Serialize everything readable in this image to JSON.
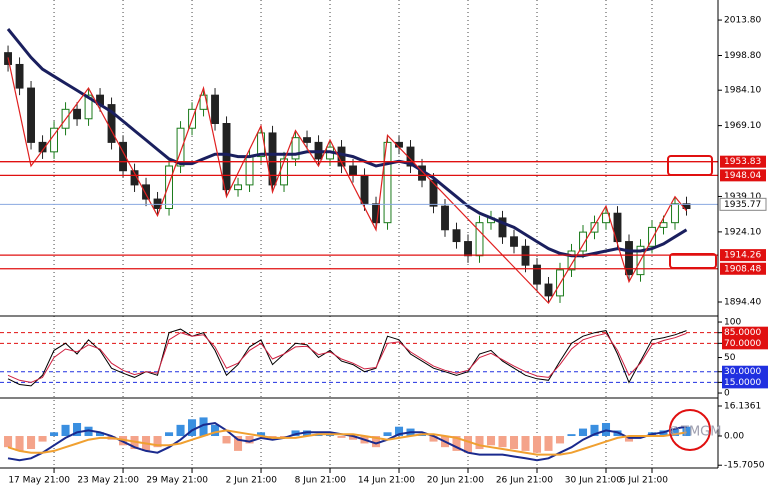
{
  "chart_data": [
    {
      "type": "candlestick",
      "up_color": "#1a7a1a",
      "down_color": "#222222",
      "xlim": [
        -0.7,
        61.74
      ],
      "ylim": [
        1888.9,
        2022.3
      ],
      "yticks": [
        {
          "value": 2013.8,
          "label": "2013.80"
        },
        {
          "value": 1998.8,
          "label": "1998.80"
        },
        {
          "value": 1984.1,
          "label": "1984.10"
        },
        {
          "value": 1969.1,
          "label": "1969.10"
        },
        {
          "value": 1939.1,
          "label": "1939.10"
        },
        {
          "value": 1924.1,
          "label": "1924.10"
        },
        {
          "value": 1894.4,
          "label": "1894.40"
        }
      ],
      "xticks": [
        {
          "value": 4,
          "label": "17 May 21:00"
        },
        {
          "value": 10,
          "label": "23 May 21:00"
        },
        {
          "value": 16,
          "label": "29 May 21:00"
        },
        {
          "value": 22,
          "label": "2 Jun 21:00"
        },
        {
          "value": 28,
          "label": "8 Jun 21:00"
        },
        {
          "value": 34,
          "label": "14 Jun 21:00"
        },
        {
          "value": 40,
          "label": "20 Jun 21:00"
        },
        {
          "value": 46,
          "label": "26 Jun 21:00"
        },
        {
          "value": 52,
          "label": "30 Jun 21:00"
        },
        {
          "value": 56,
          "label": "6 Jul 21:00"
        }
      ],
      "ohlc": [
        [
          2000,
          2003,
          1992,
          1995
        ],
        [
          1995,
          1998,
          1982,
          1985
        ],
        [
          1985,
          1988,
          1959,
          1962
        ],
        [
          1962,
          1965,
          1955,
          1958
        ],
        [
          1958,
          1971,
          1955,
          1968
        ],
        [
          1968,
          1979,
          1965,
          1976
        ],
        [
          1976,
          1979,
          1969,
          1972
        ],
        [
          1972,
          1985,
          1969,
          1982
        ],
        [
          1982,
          1985,
          1975,
          1978
        ],
        [
          1978,
          1981,
          1959,
          1962
        ],
        [
          1962,
          1965,
          1947,
          1950
        ],
        [
          1950,
          1953,
          1941,
          1944
        ],
        [
          1944,
          1947,
          1935,
          1938
        ],
        [
          1938,
          1941,
          1931,
          1934
        ],
        [
          1934,
          1955,
          1931,
          1952
        ],
        [
          1952,
          1971,
          1949,
          1968
        ],
        [
          1968,
          1979,
          1965,
          1976
        ],
        [
          1976,
          1985,
          1973,
          1982
        ],
        [
          1982,
          1985,
          1967,
          1970
        ],
        [
          1970,
          1973,
          1939,
          1942
        ],
        [
          1942,
          1947,
          1939,
          1944
        ],
        [
          1944,
          1959,
          1941,
          1956
        ],
        [
          1956,
          1969,
          1953,
          1966
        ],
        [
          1966,
          1969,
          1941,
          1944
        ],
        [
          1944,
          1958,
          1941,
          1955
        ],
        [
          1955,
          1967,
          1952,
          1964
        ],
        [
          1964,
          1967,
          1959,
          1962
        ],
        [
          1962,
          1965,
          1952,
          1955
        ],
        [
          1955,
          1963,
          1952,
          1960
        ],
        [
          1960,
          1963,
          1949,
          1952
        ],
        [
          1952,
          1955,
          1945,
          1948
        ],
        [
          1948,
          1951,
          1933,
          1936
        ],
        [
          1936,
          1939,
          1925,
          1928
        ],
        [
          1928,
          1965,
          1925,
          1962
        ],
        [
          1962,
          1965,
          1957,
          1960
        ],
        [
          1960,
          1963,
          1949,
          1952
        ],
        [
          1952,
          1955,
          1943,
          1946
        ],
        [
          1946,
          1949,
          1932,
          1935
        ],
        [
          1935,
          1938,
          1922,
          1925
        ],
        [
          1925,
          1928,
          1917,
          1920
        ],
        [
          1920,
          1923,
          1911,
          1914
        ],
        [
          1914,
          1931,
          1911,
          1928
        ],
        [
          1928,
          1933,
          1925,
          1930
        ],
        [
          1930,
          1933,
          1919,
          1922
        ],
        [
          1922,
          1925,
          1915,
          1918
        ],
        [
          1918,
          1921,
          1907,
          1910
        ],
        [
          1910,
          1913,
          1899,
          1902
        ],
        [
          1902,
          1905,
          1894,
          1897
        ],
        [
          1897,
          1911,
          1894,
          1908
        ],
        [
          1908,
          1919,
          1905,
          1916
        ],
        [
          1916,
          1927,
          1913,
          1924
        ],
        [
          1924,
          1931,
          1921,
          1928
        ],
        [
          1928,
          1935,
          1925,
          1932
        ],
        [
          1932,
          1935,
          1917,
          1920
        ],
        [
          1920,
          1923,
          1903,
          1906
        ],
        [
          1906,
          1921,
          1903,
          1918
        ],
        [
          1918,
          1929,
          1915,
          1926
        ],
        [
          1926,
          1931,
          1923,
          1928
        ],
        [
          1928,
          1939,
          1925,
          1936
        ],
        [
          1936,
          1939,
          1931,
          1934
        ]
      ],
      "ma": {
        "color": "#1a1f5e",
        "values": [
          2010,
          2004,
          1998,
          1993,
          1990,
          1987,
          1984,
          1981,
          1978,
          1975,
          1971,
          1967,
          1963,
          1959,
          1955,
          1953,
          1953,
          1955,
          1957,
          1957,
          1956,
          1956,
          1957,
          1957,
          1957,
          1957,
          1958,
          1958,
          1958,
          1957,
          1956,
          1954,
          1952,
          1953,
          1954,
          1953,
          1950,
          1947,
          1943,
          1939,
          1935,
          1932,
          1930,
          1928,
          1926,
          1923,
          1920,
          1917,
          1915,
          1914,
          1914,
          1915,
          1916,
          1917,
          1916,
          1916,
          1917,
          1919,
          1922,
          1925
        ]
      },
      "zigzag": {
        "color": "#e02020",
        "x": [
          0,
          2,
          7,
          13,
          17,
          19,
          22,
          23,
          25,
          27,
          28,
          32,
          33,
          47,
          52,
          54,
          58,
          59
        ],
        "values": [
          1998,
          1952,
          1985,
          1931,
          1985,
          1939,
          1969,
          1941,
          1967,
          1952,
          1963,
          1925,
          1965,
          1894,
          1935,
          1903,
          1939,
          1933
        ]
      },
      "levels": {
        "color": "#e01010",
        "values": [
          1953.83,
          1948.04,
          1914.26,
          1908.48
        ]
      },
      "price": {
        "color": "#8aa8e0",
        "value": 1935.77
      }
    },
    {
      "type": "line",
      "ylim": [
        -7,
        108.5
      ],
      "yticks": [
        100,
        {
          "value": 85,
          "label": "85.0000",
          "color": "#e01010"
        },
        {
          "value": 70,
          "label": "70.0000",
          "color": "#e01010"
        },
        50,
        {
          "value": 30,
          "label": "30.0000",
          "color": "#2030e0"
        },
        {
          "value": 15,
          "label": "15.0000",
          "color": "#2030e0"
        },
        0
      ],
      "series": [
        {
          "color": "#000000",
          "values": [
            20,
            12,
            10,
            25,
            60,
            70,
            55,
            75,
            60,
            35,
            28,
            22,
            30,
            25,
            85,
            90,
            80,
            85,
            60,
            25,
            40,
            65,
            75,
            40,
            55,
            70,
            68,
            50,
            60,
            45,
            40,
            30,
            35,
            80,
            75,
            55,
            45,
            35,
            30,
            25,
            30,
            55,
            60,
            45,
            35,
            25,
            20,
            18,
            45,
            70,
            80,
            85,
            88,
            55,
            15,
            45,
            75,
            78,
            82,
            88
          ]
        },
        {
          "color": "#d02040",
          "values": [
            25,
            18,
            15,
            22,
            50,
            62,
            58,
            68,
            62,
            42,
            32,
            26,
            30,
            28,
            75,
            85,
            80,
            82,
            65,
            35,
            42,
            60,
            70,
            48,
            55,
            65,
            66,
            54,
            58,
            48,
            42,
            34,
            36,
            70,
            72,
            58,
            48,
            38,
            32,
            28,
            32,
            50,
            56,
            47,
            38,
            30,
            24,
            22,
            40,
            62,
            75,
            80,
            84,
            60,
            25,
            42,
            68,
            74,
            78,
            84
          ]
        }
      ]
    },
    {
      "type": "macd",
      "ylim": [
        -17.2,
        19.9
      ],
      "yticks": [
        16.1361,
        {
          "value": 0,
          "label": "0.00"
        },
        {
          "value": -15.705,
          "label": "-15.7050"
        }
      ],
      "histogram": {
        "positive_color": "#3a8fe0",
        "negative_color": "#f4a38a",
        "values": [
          -6,
          -8,
          -7,
          -3,
          2,
          6,
          7,
          5,
          2,
          -2,
          -5,
          -7,
          -8,
          -6,
          2,
          6,
          9,
          10,
          6,
          -4,
          -8,
          -4,
          2,
          -2,
          -1,
          3,
          3,
          1,
          1,
          -1,
          -2,
          -4,
          -6,
          2,
          5,
          4,
          1,
          -3,
          -6,
          -8,
          -9,
          -7,
          -5,
          -6,
          -7,
          -8,
          -9,
          -8,
          -4,
          1,
          4,
          6,
          7,
          3,
          -3,
          -1,
          2,
          3,
          4,
          5
        ]
      },
      "series": [
        {
          "color": "#1a2a8e",
          "values": [
            -12,
            -13,
            -12,
            -9,
            -5,
            -1,
            2,
            3,
            2,
            0,
            -3,
            -6,
            -8,
            -9,
            -6,
            -2,
            3,
            6,
            7,
            3,
            -2,
            -3,
            -1,
            -2,
            -1,
            1,
            2,
            2,
            2,
            1,
            0,
            -2,
            -4,
            -2,
            1,
            2,
            2,
            0,
            -3,
            -6,
            -9,
            -10,
            -10,
            -10,
            -11,
            -12,
            -13,
            -12,
            -9,
            -6,
            -2,
            1,
            3,
            2,
            -1,
            -1,
            1,
            2,
            4,
            5
          ]
        },
        {
          "color": "#f0a030",
          "values": [
            -6,
            -8,
            -9,
            -9,
            -8,
            -6,
            -4,
            -2,
            -1,
            -1,
            -2,
            -3,
            -4,
            -5,
            -5,
            -4,
            -2,
            0,
            2,
            3,
            2,
            1,
            0,
            -1,
            -1,
            -1,
            0,
            1,
            1,
            1,
            1,
            0,
            -1,
            -2,
            -1,
            0,
            1,
            1,
            0,
            -1,
            -3,
            -5,
            -6,
            -7,
            -8,
            -9,
            -10,
            -10,
            -10,
            -9,
            -7,
            -5,
            -3,
            -1,
            0,
            0,
            0,
            0,
            1,
            2
          ]
        }
      ]
    }
  ],
  "watermark": "©TMGM"
}
